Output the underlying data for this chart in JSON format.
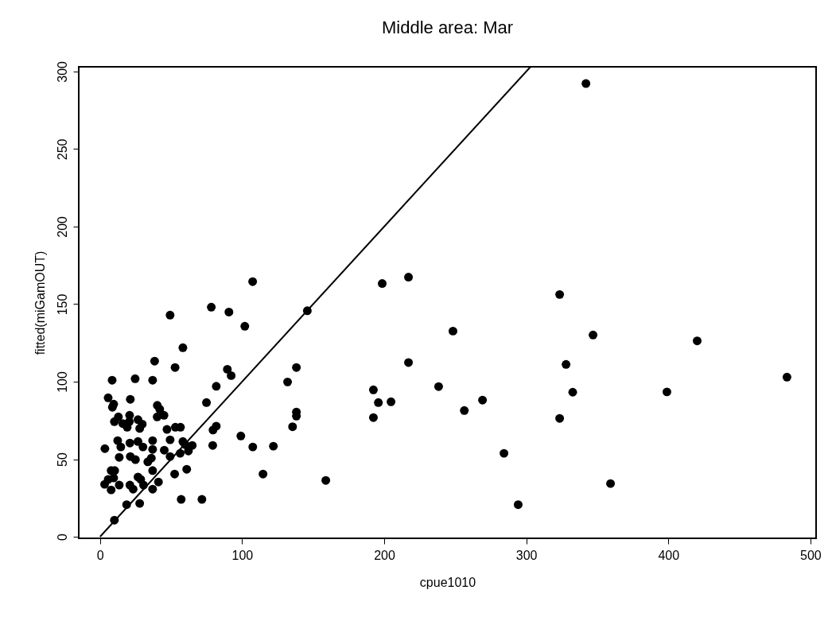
{
  "chart_data": {
    "type": "scatter",
    "title": "Middle area: Mar",
    "xlabel": "cpue1010",
    "ylabel": "fitted(miGamOUT)",
    "xlim": [
      -15,
      504
    ],
    "ylim": [
      -1,
      303
    ],
    "xticks": [
      0,
      100,
      200,
      300,
      400,
      500
    ],
    "yticks": [
      0,
      50,
      100,
      150,
      200,
      250,
      300
    ],
    "grid": false,
    "marker": "circle",
    "series": [
      {
        "color": "#000000",
        "x": [
          107.4,
          78.3,
          90.7,
          49.3,
          101.9,
          58.3,
          38.4,
          52.8,
          89.6,
          92.3,
          8.5,
          24.7,
          37.0,
          81.8,
          5.7,
          21.3,
          74.9,
          9.6,
          8.7,
          40.3,
          42.0,
          45.0,
          40.2,
          12.9,
          20.8,
          10.1,
          16.0,
          20.6,
          26.7,
          29.7,
          19.1,
          27.9,
          47.1,
          53.0,
          56.6,
          81.8,
          79.5,
          12.4,
          37.0,
          21.0,
          26.7,
          49.3,
          58.3,
          3.4,
          14.6,
          30.2,
          37.0,
          45.2,
          59.9,
          64.9,
          62.2,
          56.4,
          79.3,
          99.1,
          107.5,
          122.0,
          13.5,
          21.3,
          24.9,
          36.1,
          33.6,
          49.3,
          37.0,
          52.5,
          61.0,
          114.7,
          7.8,
          10.3,
          5.7,
          9.6,
          3.2,
          7.8,
          13.5,
          21.0,
          23.3,
          26.7,
          28.6,
          30.6,
          37.0,
          41.1,
          57.1,
          71.7,
          18.7,
          27.9,
          10.1,
          145.9,
          138.2,
          132.0,
          138.2,
          138.2,
          135.5,
          198.6,
          217.1,
          248.4,
          217.1,
          192.4,
          195.9,
          204.8,
          192.4,
          238.3,
          256.4,
          269.2,
          284.3,
          294.3,
          158.9,
          342.0,
          323.5,
          347.0,
          420.3,
          328.0,
          332.7,
          399.0,
          483.5,
          323.5,
          359.3
        ],
        "values": [
          164.5,
          148.0,
          144.9,
          142.9,
          135.7,
          121.9,
          113.2,
          109.1,
          108.0,
          103.9,
          100.9,
          101.9,
          100.9,
          97.0,
          89.6,
          88.6,
          86.5,
          85.5,
          83.5,
          84.7,
          82.2,
          78.3,
          77.3,
          77.3,
          78.3,
          74.2,
          73.0,
          74.2,
          75.5,
          72.6,
          70.6,
          69.8,
          69.2,
          70.6,
          70.6,
          71.3,
          68.8,
          62.0,
          62.0,
          60.4,
          61.4,
          62.5,
          61.4,
          56.8,
          57.9,
          57.9,
          56.3,
          55.8,
          59.4,
          58.9,
          55.3,
          53.8,
          58.9,
          65.0,
          57.9,
          58.4,
          51.2,
          51.7,
          49.7,
          50.7,
          48.3,
          51.7,
          42.7,
          40.4,
          43.5,
          40.4,
          42.7,
          42.7,
          36.9,
          37.9,
          33.8,
          30.2,
          33.3,
          33.3,
          30.7,
          38.5,
          37.0,
          33.3,
          30.7,
          35.3,
          24.1,
          24.1,
          20.7,
          21.5,
          10.7,
          145.7,
          109.1,
          99.8,
          80.4,
          77.8,
          70.9,
          163.3,
          167.4,
          132.6,
          112.3,
          94.7,
          86.5,
          87.0,
          76.8,
          96.8,
          81.4,
          88.1,
          53.8,
          20.7,
          36.3,
          292.2,
          156.2,
          130.1,
          126.3,
          111.1,
          93.2,
          93.4,
          102.9,
          76.3,
          34.3
        ]
      },
      {
        "type": "line",
        "marker": "none",
        "color": "#000000",
        "x": [
          0,
          303
        ],
        "values": [
          0,
          303
        ]
      }
    ]
  }
}
